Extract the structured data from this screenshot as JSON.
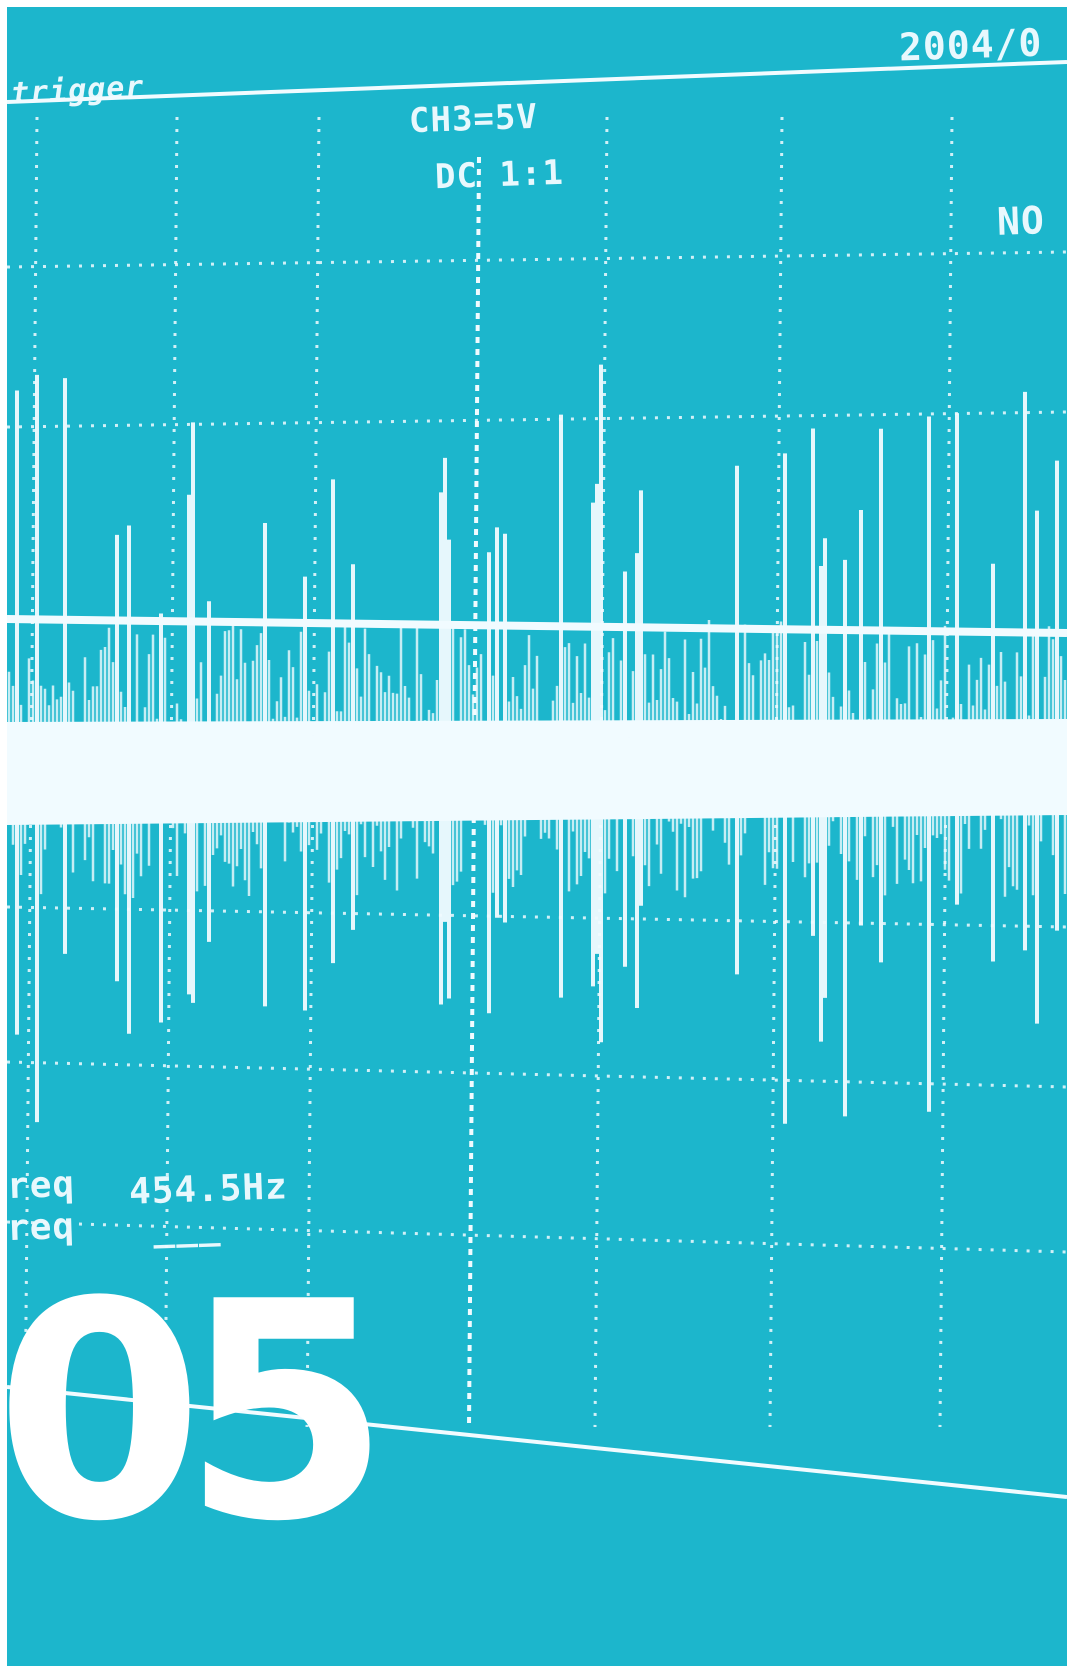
{
  "scope": {
    "trigger_label": "trigger",
    "date": "2004/0",
    "channel_scale": "CH3=5V",
    "coupling": "DC 1:1",
    "mode": "NO",
    "freq_label_1": "req",
    "freq_label_2": "req",
    "freq_value": "454.5Hz",
    "freq_value_2": "___"
  },
  "chapter": {
    "number": "05"
  },
  "colors": {
    "background": "#1cb6cc",
    "trace": "#f1fbff"
  }
}
